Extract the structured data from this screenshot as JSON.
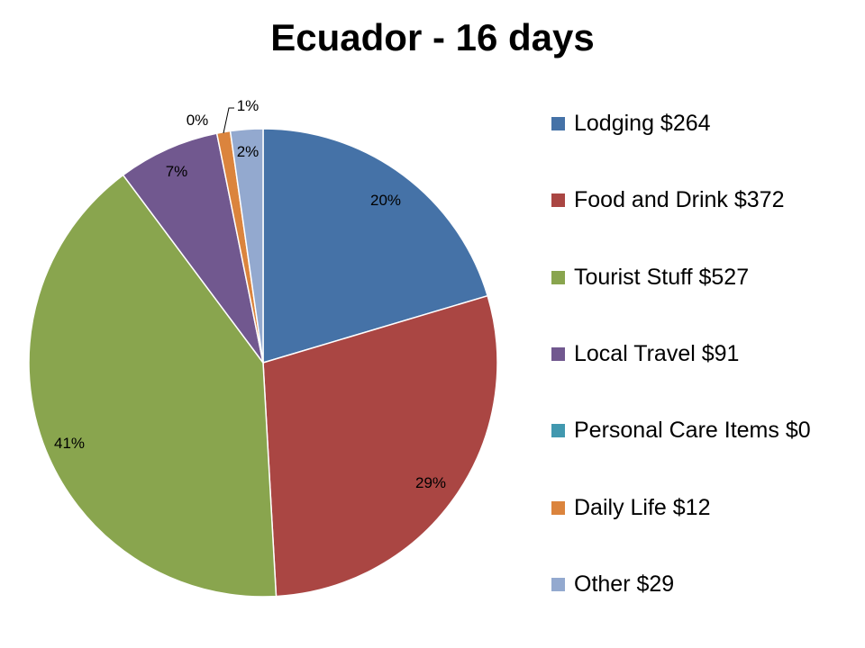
{
  "chart_data": {
    "type": "pie",
    "title": "Ecuador - 16 days",
    "categories": [
      "Lodging",
      "Food and Drink",
      "Tourist Stuff",
      "Local Travel",
      "Personal Care Items",
      "Daily Life",
      "Other"
    ],
    "values": [
      264,
      372,
      527,
      91,
      0,
      12,
      29
    ],
    "data_labels": [
      "20%",
      "29%",
      "41%",
      "7%",
      "0%",
      "1%",
      "2%"
    ],
    "legend_labels": [
      "Lodging $264",
      "Food and Drink $372",
      "Tourist Stuff $527",
      "Local Travel $91",
      "Personal Care Items $0",
      "Daily Life $12",
      "Other $29"
    ],
    "colors": [
      "#4572A7",
      "#AA4643",
      "#89A54E",
      "#71588F",
      "#4198AF",
      "#DB843D",
      "#93A9CF"
    ],
    "start_angle": "top",
    "direction": "clockwise",
    "legend_position": "right"
  }
}
